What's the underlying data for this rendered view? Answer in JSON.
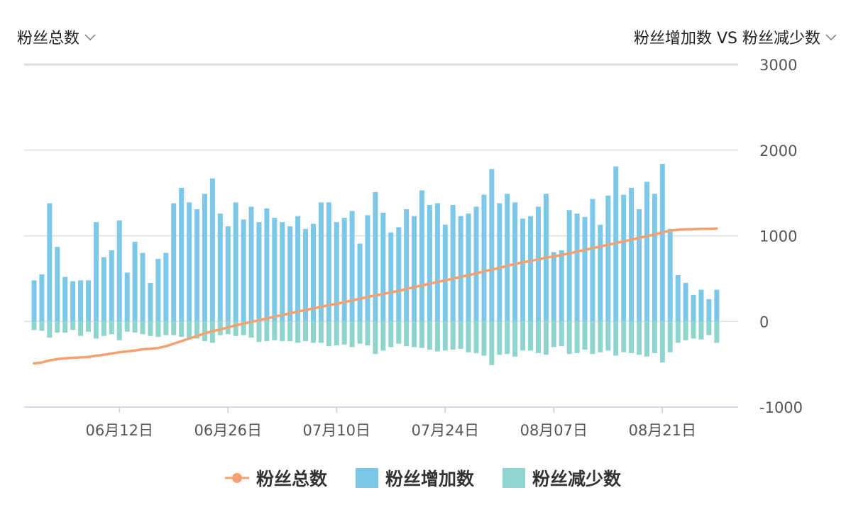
{
  "header": {
    "left_selector": "粉丝总数",
    "right_selector": "粉丝增加数 VS 粉丝减少数",
    "chevron_icon": "chevron-down-icon"
  },
  "colors": {
    "total": "#F4A070",
    "increase": "#7DC8E8",
    "decrease": "#8FD5CD",
    "grid": "#dcdcdc",
    "axis": "#c5cde0",
    "tick_text": "#555555"
  },
  "chart_data": {
    "type": "bar",
    "combo": "bar+line",
    "title": "",
    "xlabel": "",
    "ylabel": "",
    "ylim": [
      -1000,
      3000
    ],
    "yticks": [
      3000,
      2000,
      1000,
      0,
      -1000
    ],
    "grid": true,
    "legend_position": "bottom-center",
    "x_start": "2019-06-01",
    "x_end": "2019-08-28",
    "x_ticks": [
      {
        "date": "06-12",
        "label": "06月12日"
      },
      {
        "date": "06-26",
        "label": "06月26日"
      },
      {
        "date": "07-10",
        "label": "07月10日"
      },
      {
        "date": "07-24",
        "label": "07月24日"
      },
      {
        "date": "08-07",
        "label": "08月07日"
      },
      {
        "date": "08-21",
        "label": "08月21日"
      }
    ],
    "series": [
      {
        "name": "粉丝增加数",
        "type": "bar",
        "values": [
          480,
          550,
          1380,
          870,
          520,
          470,
          480,
          480,
          1160,
          750,
          830,
          1180,
          570,
          930,
          800,
          450,
          730,
          800,
          1380,
          1560,
          1390,
          1310,
          1490,
          1670,
          1260,
          1110,
          1390,
          1190,
          1340,
          1160,
          1320,
          1210,
          1160,
          1110,
          1230,
          1080,
          1140,
          1390,
          1390,
          1160,
          1210,
          1290,
          910,
          1240,
          1510,
          1270,
          1040,
          1100,
          1310,
          1230,
          1530,
          1360,
          1380,
          1130,
          1360,
          1230,
          1260,
          1340,
          1480,
          1780,
          1380,
          1490,
          1390,
          1200,
          1230,
          1340,
          1490,
          810,
          830,
          1300,
          1260,
          1220,
          1430,
          1130,
          1470,
          1810,
          1480,
          1560,
          1310,
          1630,
          1490,
          1840,
          1080,
          540,
          450,
          310,
          370,
          260,
          370
        ]
      },
      {
        "name": "粉丝减少数",
        "type": "bar",
        "values": [
          -100,
          -110,
          -190,
          -130,
          -130,
          -100,
          -170,
          -120,
          -200,
          -170,
          -150,
          -220,
          -120,
          -130,
          -150,
          -170,
          -180,
          -160,
          -160,
          -180,
          -210,
          -200,
          -230,
          -250,
          -160,
          -150,
          -170,
          -160,
          -190,
          -240,
          -230,
          -220,
          -230,
          -230,
          -250,
          -230,
          -250,
          -250,
          -290,
          -280,
          -270,
          -300,
          -260,
          -280,
          -380,
          -340,
          -300,
          -260,
          -290,
          -300,
          -310,
          -330,
          -350,
          -340,
          -330,
          -320,
          -360,
          -370,
          -400,
          -510,
          -390,
          -380,
          -410,
          -340,
          -340,
          -370,
          -390,
          -300,
          -290,
          -380,
          -370,
          -330,
          -380,
          -360,
          -340,
          -400,
          -360,
          -370,
          -390,
          -410,
          -370,
          -480,
          -360,
          -250,
          -220,
          -200,
          -210,
          -160,
          -250
        ]
      },
      {
        "name": "粉丝总数",
        "type": "line",
        "values": [
          -490,
          -480,
          -455,
          -440,
          -430,
          -425,
          -420,
          -415,
          -400,
          -390,
          -375,
          -360,
          -350,
          -340,
          -325,
          -320,
          -310,
          -290,
          -260,
          -230,
          -200,
          -170,
          -140,
          -115,
          -95,
          -70,
          -45,
          -25,
          -5,
          15,
          35,
          55,
          75,
          95,
          115,
          135,
          150,
          170,
          190,
          205,
          225,
          245,
          265,
          285,
          305,
          320,
          340,
          355,
          380,
          400,
          420,
          440,
          460,
          480,
          500,
          520,
          540,
          560,
          585,
          605,
          625,
          650,
          670,
          690,
          705,
          725,
          745,
          760,
          775,
          795,
          815,
          835,
          855,
          875,
          895,
          915,
          935,
          955,
          975,
          995,
          1015,
          1040,
          1060,
          1070,
          1075,
          1078,
          1080,
          1082,
          1085
        ]
      }
    ]
  },
  "legend": {
    "items": [
      {
        "label": "粉丝总数"
      },
      {
        "label": "粉丝增加数"
      },
      {
        "label": "粉丝减少数"
      }
    ]
  }
}
